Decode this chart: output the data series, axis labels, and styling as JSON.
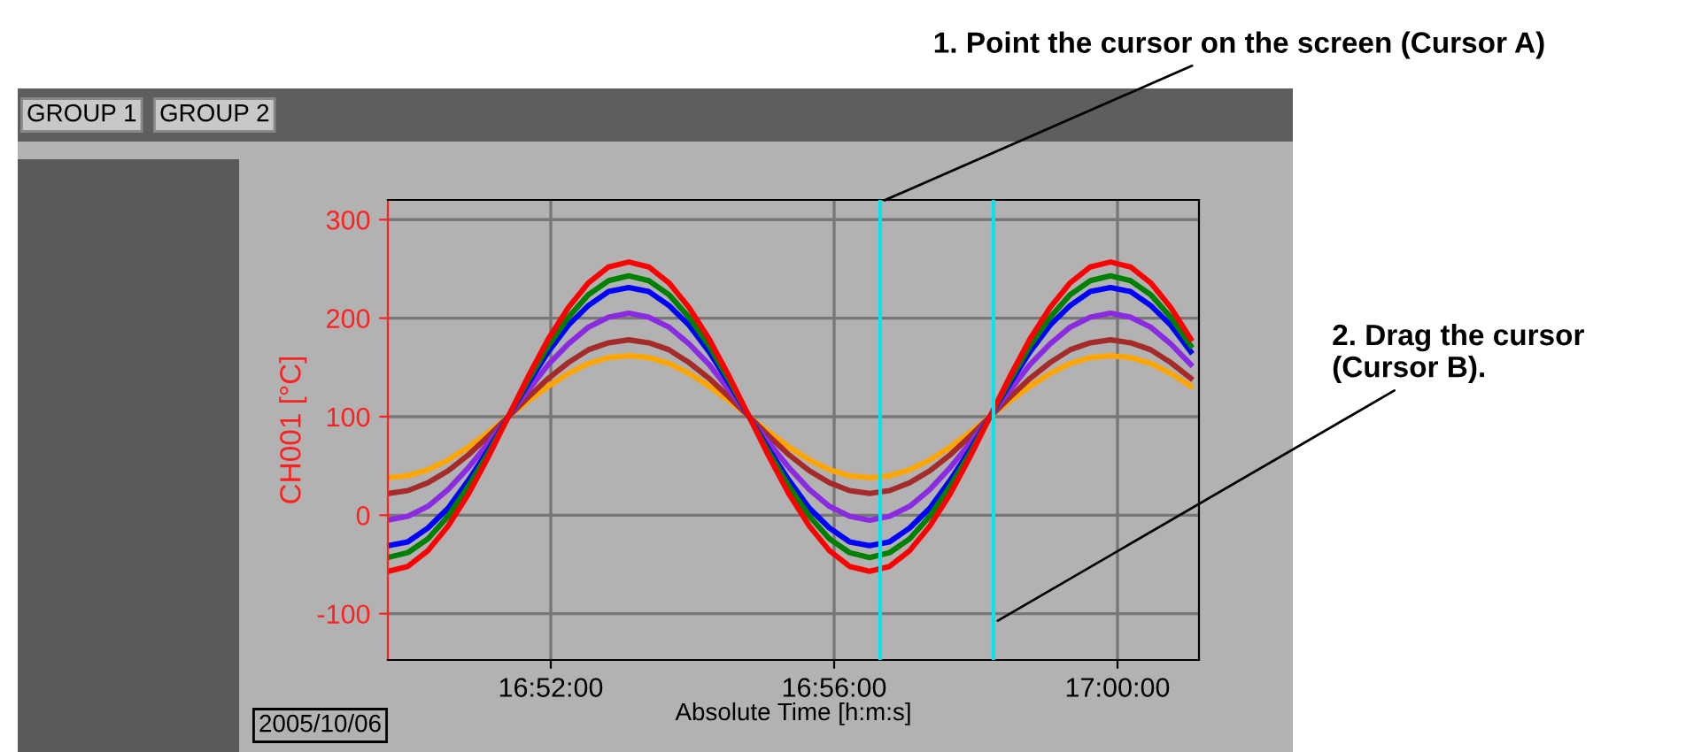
{
  "chart_data": {
    "type": "line",
    "ylabel": "CH001 [°C]",
    "xlabel": "Absolute Time [h:m:s]",
    "x": [
      "2005-10-06T16:49:42",
      "2005-10-06T16:49:59",
      "2005-10-06T16:50:16",
      "2005-10-06T16:50:33",
      "2005-10-06T16:50:50",
      "2005-10-06T16:51:07",
      "2005-10-06T16:51:24",
      "2005-10-06T16:51:41",
      "2005-10-06T16:51:58",
      "2005-10-06T16:52:15",
      "2005-10-06T16:52:32",
      "2005-10-06T16:52:49",
      "2005-10-06T16:53:06",
      "2005-10-06T16:53:23",
      "2005-10-06T16:53:40",
      "2005-10-06T16:53:57",
      "2005-10-06T16:54:14",
      "2005-10-06T16:54:31",
      "2005-10-06T16:54:48",
      "2005-10-06T16:55:05",
      "2005-10-06T16:55:22",
      "2005-10-06T16:55:39",
      "2005-10-06T16:55:56",
      "2005-10-06T16:56:13",
      "2005-10-06T16:56:30",
      "2005-10-06T16:56:47",
      "2005-10-06T16:57:04",
      "2005-10-06T16:57:21",
      "2005-10-06T16:57:38",
      "2005-10-06T16:57:55",
      "2005-10-06T16:58:12",
      "2005-10-06T16:58:29",
      "2005-10-06T16:58:46",
      "2005-10-06T16:59:03",
      "2005-10-06T16:59:20",
      "2005-10-06T16:59:37",
      "2005-10-06T16:59:54",
      "2005-10-06T17:00:11",
      "2005-10-06T17:00:28",
      "2005-10-06T17:00:45",
      "2005-10-06T17:01:02"
    ],
    "series": [
      {
        "color": "#ffa500",
        "values": [
          38,
          40,
          46,
          56,
          69,
          84,
          100,
          116,
          131,
          144,
          154,
          160,
          162,
          160,
          154,
          144,
          131,
          116,
          100,
          84,
          69,
          56,
          46,
          40,
          38,
          40,
          46,
          56,
          69,
          84,
          100,
          116,
          131,
          144,
          154,
          160,
          162,
          160,
          154,
          144,
          131
        ]
      },
      {
        "color": "#a52a2a",
        "values": [
          22,
          25,
          33,
          45,
          61,
          80,
          100,
          120,
          139,
          155,
          168,
          175,
          178,
          175,
          168,
          155,
          139,
          120,
          100,
          80,
          61,
          45,
          33,
          25,
          22,
          25,
          33,
          45,
          61,
          80,
          100,
          120,
          139,
          155,
          168,
          175,
          178,
          175,
          168,
          155,
          139
        ]
      },
      {
        "color": "#8a2be2",
        "values": [
          -5,
          -1,
          9,
          26,
          48,
          73,
          100,
          127,
          153,
          174,
          191,
          201,
          205,
          201,
          191,
          174,
          153,
          127,
          100,
          73,
          48,
          26,
          9,
          -1,
          -5,
          -1,
          9,
          26,
          48,
          73,
          100,
          127,
          153,
          174,
          191,
          201,
          205,
          201,
          191,
          174,
          153
        ]
      },
      {
        "color": "#0000ff",
        "values": [
          -31,
          -27,
          -13,
          7,
          35,
          66,
          100,
          134,
          166,
          193,
          213,
          227,
          231,
          227,
          213,
          193,
          166,
          134,
          100,
          66,
          35,
          7,
          -13,
          -27,
          -31,
          -27,
          -13,
          7,
          35,
          66,
          100,
          134,
          166,
          193,
          213,
          227,
          231,
          227,
          213,
          193,
          166
        ]
      },
      {
        "color": "#008000",
        "values": [
          -43,
          -38,
          -24,
          -1,
          29,
          63,
          100,
          137,
          172,
          201,
          224,
          238,
          243,
          238,
          224,
          201,
          172,
          137,
          100,
          63,
          29,
          -1,
          -24,
          -38,
          -43,
          -38,
          -24,
          -1,
          29,
          63,
          100,
          137,
          172,
          201,
          224,
          238,
          243,
          238,
          224,
          201,
          172
        ]
      },
      {
        "color": "#ff0000",
        "values": [
          -57,
          -52,
          -36,
          -11,
          21,
          59,
          100,
          141,
          179,
          211,
          236,
          252,
          257,
          252,
          236,
          211,
          179,
          141,
          100,
          59,
          21,
          -11,
          -36,
          -52,
          -57,
          -52,
          -36,
          -11,
          21,
          59,
          100,
          141,
          179,
          211,
          236,
          252,
          257,
          252,
          236,
          211,
          179
        ]
      }
    ],
    "xlim": [
      "2005-10-06T16:49:42",
      "2005-10-06T17:01:09"
    ],
    "xticks": [
      {
        "value": "2005-10-06T16:52:00",
        "label": "16:52:00"
      },
      {
        "value": "2005-10-06T16:56:00",
        "label": "16:56:00"
      },
      {
        "value": "2005-10-06T17:00:00",
        "label": "17:00:00"
      }
    ],
    "ylim": [
      -147,
      320
    ],
    "yticks": [
      -100,
      0,
      100,
      200,
      300
    ],
    "grid": true,
    "marker": "none",
    "line_style": "solid",
    "legend": false,
    "ref_lines": [
      {
        "axis": "x",
        "value": "2005-10-06T16:56:39",
        "label": "1. Point the cursor on the screen (Cursor A)",
        "color": "#00e5ee"
      },
      {
        "axis": "x",
        "value": "2005-10-06T16:58:15",
        "label": "2. Drag the cursor\n(Cursor B).",
        "color": "#00e5ee"
      }
    ],
    "annotations": [
      "GROUP 1",
      "GROUP 2",
      "2005/10/06"
    ]
  }
}
